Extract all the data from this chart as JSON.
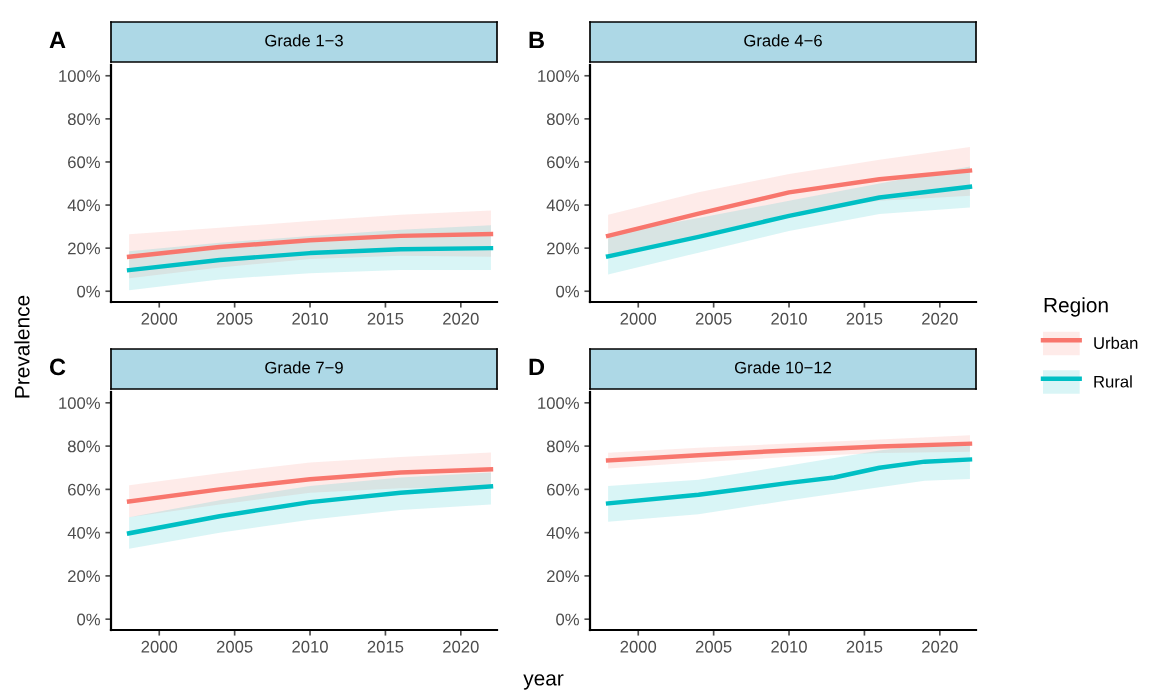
{
  "chart_data": [
    {
      "type": "line",
      "title": "Grade 1−3",
      "annotations": [
        "A"
      ],
      "ylabel": "Prevalence",
      "legend_title": "Region",
      "legend": "right",
      "grid": false,
      "xlim": [
        1996.8,
        2022.4
      ],
      "xticks": [
        2000,
        2005,
        2010,
        2015,
        2020
      ],
      "ylim": [
        -5,
        105
      ],
      "yticks": [
        {
          "value": 0,
          "label": "0%"
        },
        {
          "value": 20,
          "label": "20%"
        },
        {
          "value": 40,
          "label": "40%"
        },
        {
          "value": 60,
          "label": "60%"
        },
        {
          "value": 80,
          "label": "80%"
        },
        {
          "value": 100,
          "label": "100%"
        }
      ],
      "x": [
        1998,
        2004,
        2010,
        2016,
        2022
      ],
      "series": [
        {
          "name": "Urban",
          "color": "#f8766d",
          "values": [
            16,
            20.5,
            23.7,
            25.7,
            26.5
          ],
          "lower": [
            6,
            11,
            15,
            16.5,
            16
          ],
          "upper": [
            26.5,
            29.5,
            32.6,
            35.5,
            37.5
          ]
        },
        {
          "name": "Rural",
          "color": "#00bfc4",
          "values": [
            9.8,
            14.5,
            17.7,
            19.5,
            20
          ],
          "lower": [
            0.5,
            5.5,
            8.4,
            9.8,
            9.8
          ],
          "upper": [
            18.6,
            22.5,
            25.6,
            28.5,
            30.6
          ]
        }
      ]
    },
    {
      "type": "line",
      "title": "Grade 4−6",
      "annotations": [
        "B"
      ],
      "grid": false,
      "xlim": [
        1996.8,
        2022.4
      ],
      "xticks": [
        2000,
        2005,
        2010,
        2015,
        2020
      ],
      "ylim": [
        -5,
        105
      ],
      "yticks": [
        {
          "value": 0,
          "label": "0%"
        },
        {
          "value": 20,
          "label": "20%"
        },
        {
          "value": 40,
          "label": "40%"
        },
        {
          "value": 60,
          "label": "60%"
        },
        {
          "value": 80,
          "label": "80%"
        },
        {
          "value": 100,
          "label": "100%"
        }
      ],
      "x": [
        1998,
        2004,
        2010,
        2016,
        2022
      ],
      "series": [
        {
          "color": "#f8766d",
          "values": [
            25.7,
            36,
            45.9,
            52,
            56
          ],
          "lower": [
            17,
            26,
            36,
            42,
            44.3
          ],
          "upper": [
            35.5,
            45.9,
            54.4,
            61,
            66.9
          ]
        },
        {
          "color": "#00bfc4",
          "values": [
            16.2,
            25.2,
            35,
            43.5,
            48.5
          ],
          "lower": [
            7.8,
            17.9,
            28,
            35.8,
            38.9
          ],
          "upper": [
            26.4,
            34,
            42,
            50,
            57.9
          ]
        }
      ]
    },
    {
      "type": "line",
      "title": "Grade 7−9",
      "annotations": [
        "C"
      ],
      "xlabel": "year",
      "grid": false,
      "xlim": [
        1996.8,
        2022.4
      ],
      "xticks": [
        2000,
        2005,
        2010,
        2015,
        2020
      ],
      "ylim": [
        -5,
        105
      ],
      "yticks": [
        {
          "value": 0,
          "label": "0%"
        },
        {
          "value": 20,
          "label": "20%"
        },
        {
          "value": 40,
          "label": "40%"
        },
        {
          "value": 60,
          "label": "60%"
        },
        {
          "value": 80,
          "label": "80%"
        },
        {
          "value": 100,
          "label": "100%"
        }
      ],
      "x": [
        1998,
        2004,
        2010,
        2016,
        2022
      ],
      "series": [
        {
          "color": "#f8766d",
          "values": [
            54.4,
            60,
            64.7,
            67.8,
            69.3
          ],
          "lower": [
            47.1,
            53,
            58.4,
            60.5,
            61
          ],
          "upper": [
            61.9,
            67.5,
            72.4,
            75,
            77
          ]
        },
        {
          "color": "#00bfc4",
          "values": [
            39.7,
            47.6,
            54.1,
            58.4,
            61.4
          ],
          "lower": [
            32.6,
            40,
            46,
            50.5,
            53
          ],
          "upper": [
            47.1,
            55,
            61.6,
            65.5,
            67.8
          ]
        }
      ]
    },
    {
      "type": "line",
      "title": "Grade 10−12",
      "annotations": [
        "D"
      ],
      "grid": false,
      "xlim": [
        1996.8,
        2022.4
      ],
      "xticks": [
        2000,
        2005,
        2010,
        2015,
        2020
      ],
      "ylim": [
        -5,
        105
      ],
      "yticks": [
        {
          "value": 0,
          "label": "0%"
        },
        {
          "value": 20,
          "label": "20%"
        },
        {
          "value": 40,
          "label": "40%"
        },
        {
          "value": 60,
          "label": "60%"
        },
        {
          "value": 80,
          "label": "80%"
        },
        {
          "value": 100,
          "label": "100%"
        }
      ],
      "series": [
        {
          "color": "#f8766d",
          "x": [
            1998,
            2004,
            2010,
            2016,
            2022
          ],
          "values": [
            73.4,
            75.8,
            78,
            79.8,
            81.1
          ],
          "lower": [
            69.7,
            72.5,
            75,
            76.8,
            77.4
          ],
          "upper": [
            76.9,
            79.2,
            81.2,
            83,
            85
          ]
        },
        {
          "color": "#00bfc4",
          "x": [
            1998,
            2004,
            2010,
            2013,
            2016,
            2019,
            2022
          ],
          "values": [
            53.5,
            57.5,
            63,
            65.5,
            70,
            72.8,
            73.8
          ],
          "lower": [
            45,
            48.5,
            55,
            58,
            61,
            64,
            64.8
          ],
          "upper": [
            61.5,
            64.5,
            71,
            74.5,
            78,
            80.5,
            82
          ]
        }
      ]
    }
  ]
}
